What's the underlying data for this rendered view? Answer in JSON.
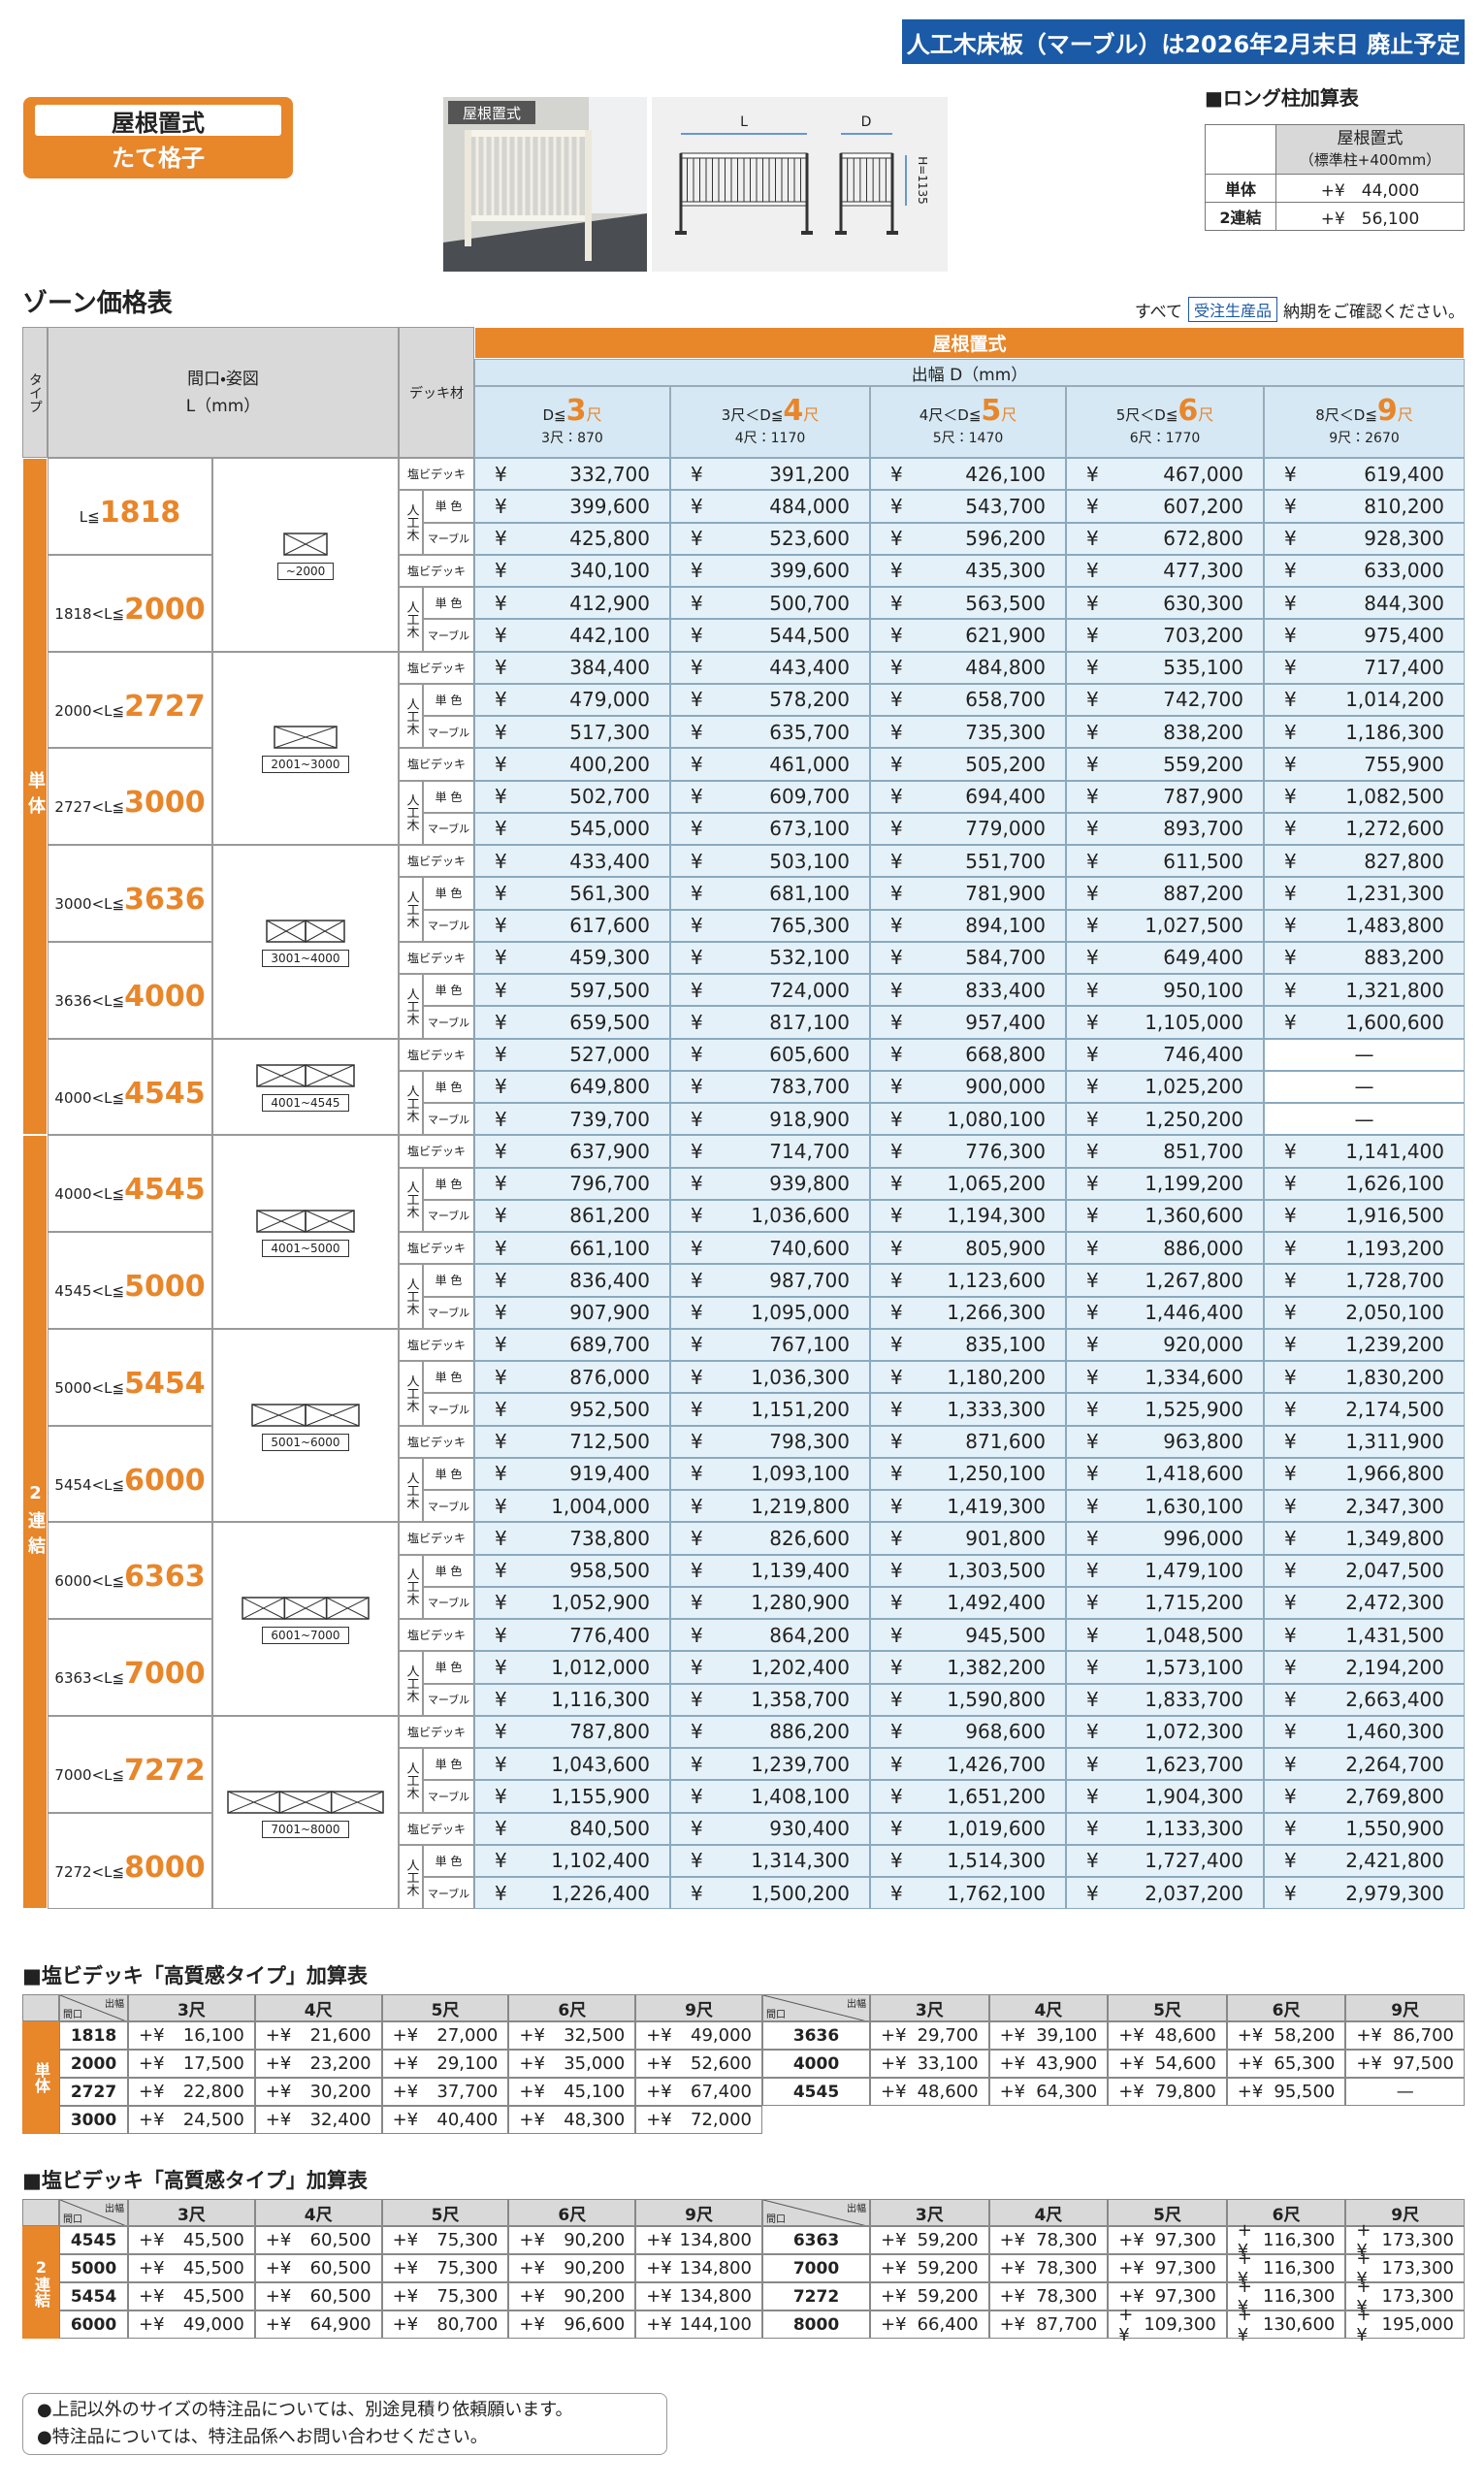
{
  "banner": "人工木床板（マーブル）は2026年2月末日 廃止予定",
  "badge": {
    "top": "屋根置式",
    "bottom": "たて格子"
  },
  "photo_label": "屋根置式",
  "diagram": {
    "width": "L",
    "depth": "D",
    "height": "H=1135"
  },
  "long_post": {
    "title": "■ロング柱加算表",
    "header": "屋根置式",
    "subheader": "（標準柱+400mm）",
    "rows": [
      {
        "type": "単体",
        "price": "+¥　44,000"
      },
      {
        "type": "2連結",
        "price": "+¥　56,100"
      }
    ]
  },
  "zone": {
    "title": "ゾーン価格表",
    "note": [
      "すべて",
      "受注生産品",
      "納期をご確認ください。"
    ]
  },
  "main_table": {
    "header": {
      "type": "タイプ",
      "size": "間口・姿図",
      "unit": "L（mm）",
      "deck": "デッキ材",
      "title": "屋根置式",
      "depth": "出幅 D（mm）",
      "columns": [
        {
          "pre": "D≦",
          "num": "3",
          "unit": "尺",
          "sub": "3尺：870"
        },
        {
          "pre": "3尺＜D≦",
          "num": "4",
          "unit": "尺",
          "sub": "4尺：1170"
        },
        {
          "pre": "4尺＜D≦",
          "num": "5",
          "unit": "尺",
          "sub": "5尺：1470"
        },
        {
          "pre": "5尺＜D≦",
          "num": "6",
          "unit": "尺",
          "sub": "6尺：1770"
        },
        {
          "pre": "8尺＜D≦",
          "num": "9",
          "unit": "尺",
          "sub": "9尺：2670"
        }
      ]
    },
    "deck": {
      "pvc": "塩ビデッキ",
      "wood": "人工木",
      "mono": "単 色",
      "marble": "マーブル"
    },
    "currency": "¥",
    "groups": [
      {
        "type": "単体",
        "figures": [
          {
            "label": "~2000",
            "sizes": [
              {
                "pre": "L≦",
                "limit": "1818",
                "rows": [
                  [
                    "332,700",
                    "391,200",
                    "426,100",
                    "467,000",
                    "619,400"
                  ],
                  [
                    "399,600",
                    "484,000",
                    "543,700",
                    "607,200",
                    "810,200"
                  ],
                  [
                    "425,800",
                    "523,600",
                    "596,200",
                    "672,800",
                    "928,300"
                  ]
                ]
              },
              {
                "pre": "1818<L≦",
                "limit": "2000",
                "rows": [
                  [
                    "340,100",
                    "399,600",
                    "435,300",
                    "477,300",
                    "633,000"
                  ],
                  [
                    "412,900",
                    "500,700",
                    "563,500",
                    "630,300",
                    "844,300"
                  ],
                  [
                    "442,100",
                    "544,500",
                    "621,900",
                    "703,200",
                    "975,400"
                  ]
                ]
              }
            ]
          },
          {
            "label": "2001~3000",
            "sizes": [
              {
                "pre": "2000<L≦",
                "limit": "2727",
                "rows": [
                  [
                    "384,400",
                    "443,400",
                    "484,800",
                    "535,100",
                    "717,400"
                  ],
                  [
                    "479,000",
                    "578,200",
                    "658,700",
                    "742,700",
                    "1,014,200"
                  ],
                  [
                    "517,300",
                    "635,700",
                    "735,300",
                    "838,200",
                    "1,186,300"
                  ]
                ]
              },
              {
                "pre": "2727<L≦",
                "limit": "3000",
                "rows": [
                  [
                    "400,200",
                    "461,000",
                    "505,200",
                    "559,200",
                    "755,900"
                  ],
                  [
                    "502,700",
                    "609,700",
                    "694,400",
                    "787,900",
                    "1,082,500"
                  ],
                  [
                    "545,000",
                    "673,100",
                    "779,000",
                    "893,700",
                    "1,272,600"
                  ]
                ]
              }
            ]
          },
          {
            "label": "3001~4000",
            "sizes": [
              {
                "pre": "3000<L≦",
                "limit": "3636",
                "rows": [
                  [
                    "433,400",
                    "503,100",
                    "551,700",
                    "611,500",
                    "827,800"
                  ],
                  [
                    "561,300",
                    "681,100",
                    "781,900",
                    "887,200",
                    "1,231,300"
                  ],
                  [
                    "617,600",
                    "765,300",
                    "894,100",
                    "1,027,500",
                    "1,483,800"
                  ]
                ]
              },
              {
                "pre": "3636<L≦",
                "limit": "4000",
                "rows": [
                  [
                    "459,300",
                    "532,100",
                    "584,700",
                    "649,400",
                    "883,200"
                  ],
                  [
                    "597,500",
                    "724,000",
                    "833,400",
                    "950,100",
                    "1,321,800"
                  ],
                  [
                    "659,500",
                    "817,100",
                    "957,400",
                    "1,105,000",
                    "1,600,600"
                  ]
                ]
              }
            ]
          },
          {
            "label": "4001~4545",
            "sizes": [
              {
                "pre": "4000<L≦",
                "limit": "4545",
                "rows": [
                  [
                    "527,000",
                    "605,600",
                    "668,800",
                    "746,400",
                    "—"
                  ],
                  [
                    "649,800",
                    "783,700",
                    "900,000",
                    "1,025,200",
                    "—"
                  ],
                  [
                    "739,700",
                    "918,900",
                    "1,080,100",
                    "1,250,200",
                    "—"
                  ]
                ]
              }
            ]
          }
        ]
      },
      {
        "type": "2連結",
        "figures": [
          {
            "label": "4001~5000",
            "sizes": [
              {
                "pre": "4000<L≦",
                "limit": "4545",
                "rows": [
                  [
                    "637,900",
                    "714,700",
                    "776,300",
                    "851,700",
                    "1,141,400"
                  ],
                  [
                    "796,700",
                    "939,800",
                    "1,065,200",
                    "1,199,200",
                    "1,626,100"
                  ],
                  [
                    "861,200",
                    "1,036,600",
                    "1,194,300",
                    "1,360,600",
                    "1,916,500"
                  ]
                ]
              },
              {
                "pre": "4545<L≦",
                "limit": "5000",
                "rows": [
                  [
                    "661,100",
                    "740,600",
                    "805,900",
                    "886,000",
                    "1,193,200"
                  ],
                  [
                    "836,400",
                    "987,700",
                    "1,123,600",
                    "1,267,800",
                    "1,728,700"
                  ],
                  [
                    "907,900",
                    "1,095,000",
                    "1,266,300",
                    "1,446,400",
                    "2,050,100"
                  ]
                ]
              }
            ]
          },
          {
            "label": "5001~6000",
            "sizes": [
              {
                "pre": "5000<L≦",
                "limit": "5454",
                "rows": [
                  [
                    "689,700",
                    "767,100",
                    "835,100",
                    "920,000",
                    "1,239,200"
                  ],
                  [
                    "876,000",
                    "1,036,300",
                    "1,180,200",
                    "1,334,600",
                    "1,830,200"
                  ],
                  [
                    "952,500",
                    "1,151,200",
                    "1,333,300",
                    "1,525,900",
                    "2,174,500"
                  ]
                ]
              },
              {
                "pre": "5454<L≦",
                "limit": "6000",
                "rows": [
                  [
                    "712,500",
                    "798,300",
                    "871,600",
                    "963,800",
                    "1,311,900"
                  ],
                  [
                    "919,400",
                    "1,093,100",
                    "1,250,100",
                    "1,418,600",
                    "1,966,800"
                  ],
                  [
                    "1,004,000",
                    "1,219,800",
                    "1,419,300",
                    "1,630,100",
                    "2,347,300"
                  ]
                ]
              }
            ]
          },
          {
            "label": "6001~7000",
            "sizes": [
              {
                "pre": "6000<L≦",
                "limit": "6363",
                "rows": [
                  [
                    "738,800",
                    "826,600",
                    "901,800",
                    "996,000",
                    "1,349,800"
                  ],
                  [
                    "958,500",
                    "1,139,400",
                    "1,303,500",
                    "1,479,100",
                    "2,047,500"
                  ],
                  [
                    "1,052,900",
                    "1,280,900",
                    "1,492,400",
                    "1,715,200",
                    "2,472,300"
                  ]
                ]
              },
              {
                "pre": "6363<L≦",
                "limit": "7000",
                "rows": [
                  [
                    "776,400",
                    "864,200",
                    "945,500",
                    "1,048,500",
                    "1,431,500"
                  ],
                  [
                    "1,012,000",
                    "1,202,400",
                    "1,382,200",
                    "1,573,100",
                    "2,194,200"
                  ],
                  [
                    "1,116,300",
                    "1,358,700",
                    "1,590,800",
                    "1,833,700",
                    "2,663,400"
                  ]
                ]
              }
            ]
          },
          {
            "label": "7001~8000",
            "sizes": [
              {
                "pre": "7000<L≦",
                "limit": "7272",
                "rows": [
                  [
                    "787,800",
                    "886,200",
                    "968,600",
                    "1,072,300",
                    "1,460,300"
                  ],
                  [
                    "1,043,600",
                    "1,239,700",
                    "1,426,700",
                    "1,623,700",
                    "2,264,700"
                  ],
                  [
                    "1,155,900",
                    "1,408,100",
                    "1,651,200",
                    "1,904,300",
                    "2,769,800"
                  ]
                ]
              },
              {
                "pre": "7272<L≦",
                "limit": "8000",
                "rows": [
                  [
                    "840,500",
                    "930,400",
                    "1,019,600",
                    "1,133,300",
                    "1,550,900"
                  ],
                  [
                    "1,102,400",
                    "1,314,300",
                    "1,514,300",
                    "1,727,400",
                    "2,421,800"
                  ],
                  [
                    "1,226,400",
                    "1,500,200",
                    "1,762,100",
                    "2,037,200",
                    "2,979,300"
                  ]
                ]
              }
            ]
          }
        ]
      }
    ]
  },
  "addon_tables": [
    {
      "title": "■塩ビデッキ「高質感タイプ」加算表",
      "type": "単体",
      "corner": [
        "間口",
        "出幅"
      ],
      "columns": [
        "3尺",
        "4尺",
        "5尺",
        "6尺",
        "9尺"
      ],
      "prefix": "+¥",
      "halves": [
        [
          {
            "size": "1818",
            "values": [
              "16,100",
              "21,600",
              "27,000",
              "32,500",
              "49,000"
            ]
          },
          {
            "size": "2000",
            "values": [
              "17,500",
              "23,200",
              "29,100",
              "35,000",
              "52,600"
            ]
          },
          {
            "size": "2727",
            "values": [
              "22,800",
              "30,200",
              "37,700",
              "45,100",
              "67,400"
            ]
          },
          {
            "size": "3000",
            "values": [
              "24,500",
              "32,400",
              "40,400",
              "48,300",
              "72,000"
            ]
          }
        ],
        [
          {
            "size": "3636",
            "values": [
              "29,700",
              "39,100",
              "48,600",
              "58,200",
              "86,700"
            ]
          },
          {
            "size": "4000",
            "values": [
              "33,100",
              "43,900",
              "54,600",
              "65,300",
              "97,500"
            ]
          },
          {
            "size": "4545",
            "values": [
              "48,600",
              "64,300",
              "79,800",
              "95,500",
              "—"
            ]
          }
        ]
      ]
    },
    {
      "title": "■塩ビデッキ「高質感タイプ」加算表",
      "type": "2連結",
      "corner": [
        "間口",
        "出幅"
      ],
      "columns": [
        "3尺",
        "4尺",
        "5尺",
        "6尺",
        "9尺"
      ],
      "prefix": "+¥",
      "halves": [
        [
          {
            "size": "4545",
            "values": [
              "45,500",
              "60,500",
              "75,300",
              "90,200",
              "134,800"
            ]
          },
          {
            "size": "5000",
            "values": [
              "45,500",
              "60,500",
              "75,300",
              "90,200",
              "134,800"
            ]
          },
          {
            "size": "5454",
            "values": [
              "45,500",
              "60,500",
              "75,300",
              "90,200",
              "134,800"
            ]
          },
          {
            "size": "6000",
            "values": [
              "49,000",
              "64,900",
              "80,700",
              "96,600",
              "144,100"
            ]
          }
        ],
        [
          {
            "size": "6363",
            "values": [
              "59,200",
              "78,300",
              "97,300",
              "116,300",
              "173,300"
            ]
          },
          {
            "size": "7000",
            "values": [
              "59,200",
              "78,300",
              "97,300",
              "116,300",
              "173,300"
            ]
          },
          {
            "size": "7272",
            "values": [
              "59,200",
              "78,300",
              "97,300",
              "116,300",
              "173,300"
            ]
          },
          {
            "size": "8000",
            "values": [
              "66,400",
              "87,700",
              "109,300",
              "130,600",
              "195,000"
            ]
          }
        ]
      ]
    }
  ],
  "notes": [
    "●上記以外のサイズの特注品については、別途見積り依頼願います。",
    "●特注品については、特注品係へお問い合わせください。"
  ]
}
